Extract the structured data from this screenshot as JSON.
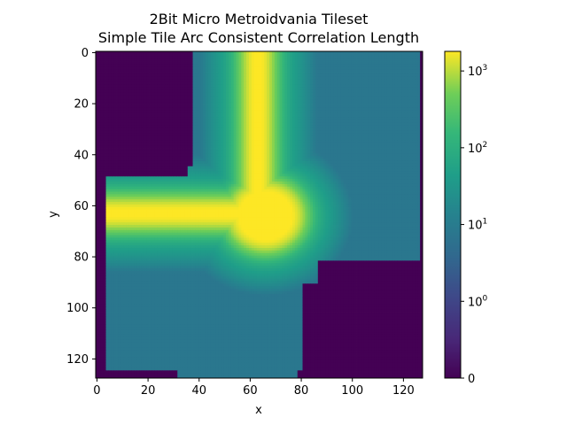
{
  "chart_data": {
    "type": "heatmap",
    "title": "2Bit Micro Metroidvania Tileset",
    "subtitle": "Simple Tile Arc Consistent Correlation Length",
    "xlabel": "x",
    "ylabel": "y",
    "xlim": [
      0,
      127
    ],
    "ylim": [
      127,
      0
    ],
    "x_ticks": [
      "0",
      "20",
      "40",
      "60",
      "80",
      "100",
      "120"
    ],
    "y_ticks": [
      "0",
      "20",
      "40",
      "60",
      "80",
      "100",
      "120"
    ],
    "x_tick_values": [
      0,
      20,
      40,
      60,
      80,
      100,
      120
    ],
    "y_tick_values": [
      0,
      20,
      40,
      60,
      80,
      100,
      120
    ],
    "colormap": "viridis",
    "color_scale": "symlog",
    "colorbar": {
      "range": [
        0,
        1800
      ],
      "tick_values": [
        0,
        1,
        10,
        100,
        1000
      ],
      "tick_labels": [
        {
          "base": "0",
          "exp": ""
        },
        {
          "base": "10",
          "exp": "0"
        },
        {
          "base": "10",
          "exp": "1"
        },
        {
          "base": "10",
          "exp": "2"
        },
        {
          "base": "10",
          "exp": "3"
        }
      ]
    },
    "regions": {
      "background_value": 0,
      "plateau_value": 8,
      "peak_value": 1800,
      "description_values": "low (0) outside the tile shape, ~8 on flat plateau, up to ~1800 along the arc"
    }
  }
}
